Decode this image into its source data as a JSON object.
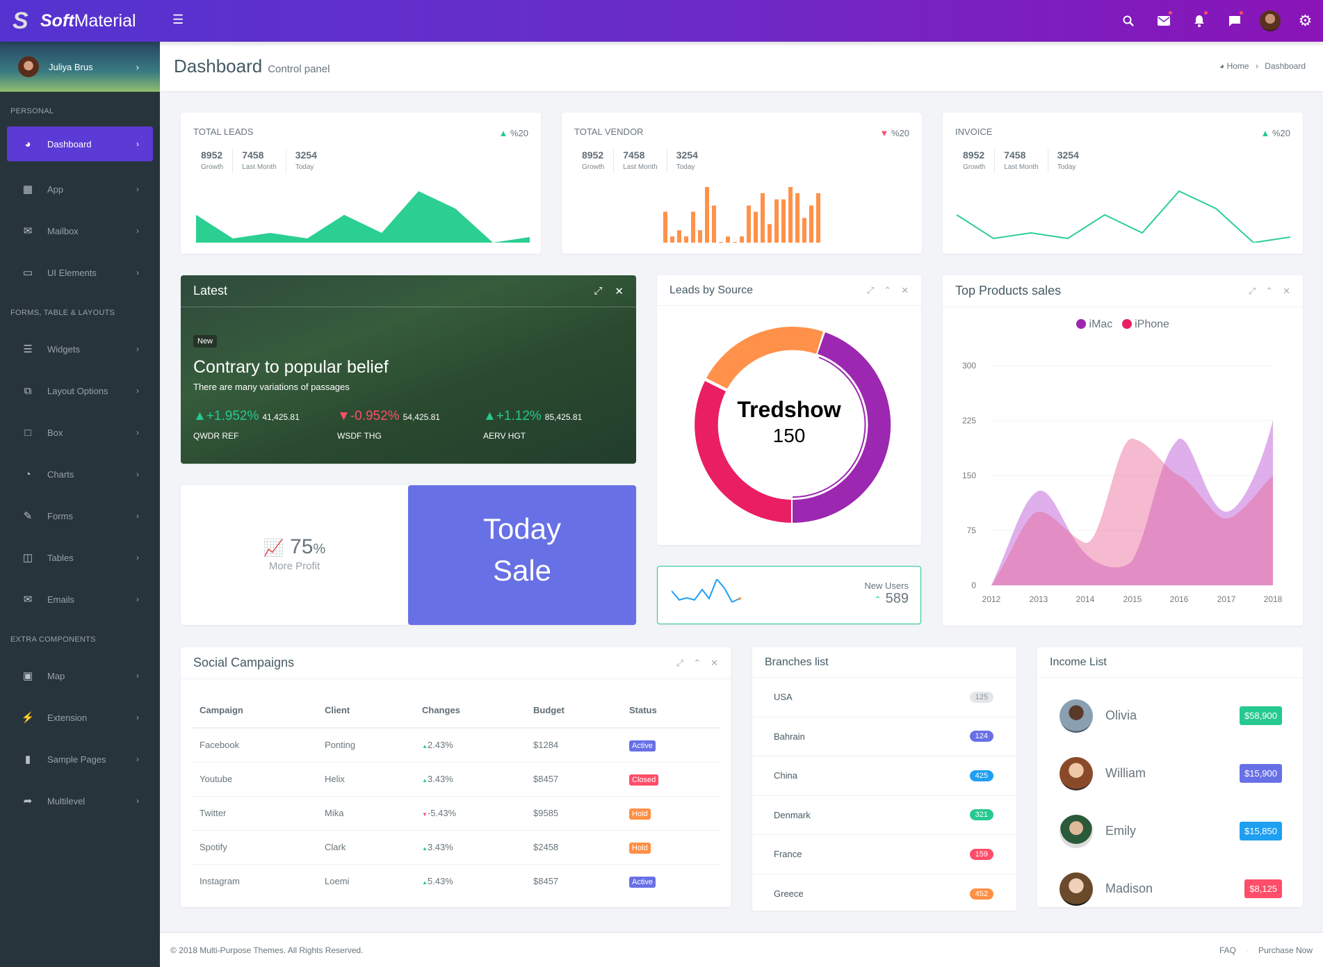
{
  "header": {
    "brand_bold": "Soft",
    "brand_rest": "Material",
    "icons": [
      "search-icon",
      "mail-icon",
      "bell-icon",
      "chat-icon",
      "avatar",
      "gear-icon"
    ]
  },
  "sidebar": {
    "user_name": "Juliya Brus",
    "sections": [
      {
        "title": "PERSONAL",
        "items": [
          {
            "label": "Dashboard",
            "icon": "dashboard-icon",
            "active": true
          },
          {
            "label": "App",
            "icon": "grid-icon"
          },
          {
            "label": "Mailbox",
            "icon": "envelope-icon"
          },
          {
            "label": "UI Elements",
            "icon": "laptop-icon"
          }
        ]
      },
      {
        "title": "FORMS, TABLE & LAYOUTS",
        "items": [
          {
            "label": "Widgets",
            "icon": "bars-icon"
          },
          {
            "label": "Layout Options",
            "icon": "copy-icon"
          },
          {
            "label": "Box",
            "icon": "square-icon"
          },
          {
            "label": "Charts",
            "icon": "pie-chart-icon"
          },
          {
            "label": "Forms",
            "icon": "edit-icon"
          },
          {
            "label": "Tables",
            "icon": "table-icon"
          },
          {
            "label": "Emails",
            "icon": "envelope-open-icon"
          }
        ]
      },
      {
        "title": "EXTRA COMPONENTS",
        "items": [
          {
            "label": "Map",
            "icon": "map-icon"
          },
          {
            "label": "Extension",
            "icon": "plug-icon"
          },
          {
            "label": "Sample Pages",
            "icon": "file-icon"
          },
          {
            "label": "Multilevel",
            "icon": "share-icon"
          }
        ]
      }
    ]
  },
  "page": {
    "title": "Dashboard",
    "subtitle": "Control panel",
    "breadcrumb": [
      "Home",
      "Dashboard"
    ]
  },
  "stats": [
    {
      "title": "TOTAL LEADS",
      "trend": "up",
      "pct": "%20",
      "values": [
        {
          "v": "8952",
          "l": "Growth"
        },
        {
          "v": "7458",
          "l": "Last Month"
        },
        {
          "v": "3254",
          "l": "Today"
        }
      ]
    },
    {
      "title": "TOTAL VENDOR",
      "trend": "down",
      "pct": "%20",
      "values": [
        {
          "v": "8952",
          "l": "Growth"
        },
        {
          "v": "7458",
          "l": "Last Month"
        },
        {
          "v": "3254",
          "l": "Today"
        }
      ]
    },
    {
      "title": "INVOICE",
      "trend": "up",
      "pct": "%20",
      "values": [
        {
          "v": "8952",
          "l": "Growth"
        },
        {
          "v": "7458",
          "l": "Last Month"
        },
        {
          "v": "3254",
          "l": "Today"
        }
      ]
    }
  ],
  "latest": {
    "title": "Latest",
    "badge": "New",
    "headline": "Contrary to popular belief",
    "sub": "There are many variations of passages",
    "stocks": [
      {
        "pct": "+1.952%",
        "amt": "41,425.81",
        "name": "QWDR REF",
        "trend": "up"
      },
      {
        "pct": "-0.952%",
        "amt": "54,425.81",
        "name": "WSDF THG",
        "trend": "down"
      },
      {
        "pct": "+1.12%",
        "amt": "85,425.81",
        "name": "AERV HGT",
        "trend": "up"
      }
    ]
  },
  "profit": {
    "value": "75",
    "unit": "%",
    "label": "More Profit"
  },
  "today_sale": {
    "line1": "Today",
    "line2": "Sale"
  },
  "leads_by_source": {
    "title": "Leads by Source",
    "center_title": "Tredshow",
    "center_value": "150"
  },
  "new_users": {
    "label": "New Users",
    "value": "589"
  },
  "top_products": {
    "title": "Top Products sales",
    "legend": [
      "iMac",
      "iPhone"
    ]
  },
  "social": {
    "title": "Social Campaigns",
    "columns": [
      "Campaign",
      "Client",
      "Changes",
      "Budget",
      "Status"
    ],
    "rows": [
      {
        "campaign": "Facebook",
        "client": "Ponting",
        "change": "2.43%",
        "trend": "up",
        "budget": "$1284",
        "status": "Active",
        "color": "#6870e6"
      },
      {
        "campaign": "Youtube",
        "client": "Helix",
        "change": "3.43%",
        "trend": "up",
        "budget": "$8457",
        "status": "Closed",
        "color": "#ff4d6a"
      },
      {
        "campaign": "Twitter",
        "client": "Mika",
        "change": "-5.43%",
        "trend": "down",
        "budget": "$9585",
        "status": "Hold",
        "color": "#ff8f45"
      },
      {
        "campaign": "Spotify",
        "client": "Clark",
        "change": "3.43%",
        "trend": "up",
        "budget": "$2458",
        "status": "Hold",
        "color": "#ff8f45"
      },
      {
        "campaign": "Instagram",
        "client": "Loemi",
        "change": "5.43%",
        "trend": "up",
        "budget": "$8457",
        "status": "Active",
        "color": "#6870e6"
      }
    ]
  },
  "branches": {
    "title": "Branches list",
    "items": [
      {
        "name": "USA",
        "count": "125",
        "color": "#e4e7ea",
        "text": "#8a949a"
      },
      {
        "name": "Bahrain",
        "count": "124",
        "color": "#6870e6",
        "text": "#fff"
      },
      {
        "name": "China",
        "count": "425",
        "color": "#1e9ff2",
        "text": "#fff"
      },
      {
        "name": "Denmark",
        "count": "321",
        "color": "#26c98f",
        "text": "#fff"
      },
      {
        "name": "France",
        "count": "159",
        "color": "#ff4d6a",
        "text": "#fff"
      },
      {
        "name": "Greece",
        "count": "452",
        "color": "#ff8f45",
        "text": "#fff"
      }
    ]
  },
  "income": {
    "title": "Income List",
    "items": [
      {
        "name": "Olivia",
        "amount": "$58,900",
        "color": "#26c98f"
      },
      {
        "name": "William",
        "amount": "$15,900",
        "color": "#6870e6"
      },
      {
        "name": "Emily",
        "amount": "$15,850",
        "color": "#1e9ff2"
      },
      {
        "name": "Madison",
        "amount": "$8,125",
        "color": "#ff4d6a"
      }
    ]
  },
  "footer": {
    "copyright": "© 2018 Multi-Purpose Themes. All Rights Reserved.",
    "links": [
      "FAQ",
      "Purchase Now"
    ]
  },
  "chart_data": [
    {
      "type": "area",
      "title": "TOTAL LEADS sparkline",
      "values": [
        5,
        1,
        2,
        1,
        5,
        2,
        9,
        6,
        0,
        1
      ],
      "color": "#2bcf92"
    },
    {
      "type": "bar",
      "title": "TOTAL VENDOR sparkline",
      "values": [
        5,
        1,
        2,
        1,
        5,
        2,
        9,
        6,
        0,
        1,
        0,
        1,
        6,
        5,
        8,
        3,
        7,
        7,
        9,
        8,
        4,
        6,
        8
      ],
      "color": "#ff914a"
    },
    {
      "type": "line",
      "title": "INVOICE sparkline",
      "values": [
        5,
        1,
        2,
        1,
        5,
        2,
        9,
        6,
        0,
        1
      ],
      "color": "#2bcf92"
    },
    {
      "type": "pie",
      "title": "Leads by Source",
      "donut": true,
      "center": "Tredshow 150",
      "slices": [
        {
          "label": "Purple",
          "value": 50,
          "color": "#9c27b0"
        },
        {
          "label": "Pink",
          "value": 30,
          "color": "#e91e63"
        },
        {
          "label": "Orange",
          "value": 20,
          "color": "#ff914a"
        }
      ]
    },
    {
      "type": "line",
      "title": "New Users sparkline",
      "values": [
        4,
        2,
        2.5,
        2,
        4,
        2.5,
        6,
        4,
        1,
        1.5
      ],
      "color": "#1e9ff2"
    },
    {
      "type": "area",
      "title": "Top Products sales",
      "categories": [
        "2012",
        "2013",
        "2014",
        "2015",
        "2016",
        "2017",
        "2018"
      ],
      "series": [
        {
          "name": "iMac",
          "values": [
            0,
            130,
            30,
            30,
            200,
            105,
            250
          ],
          "color": "#9c27b0"
        },
        {
          "name": "iPhone",
          "values": [
            0,
            100,
            60,
            200,
            150,
            90,
            150
          ],
          "color": "#e91e63"
        }
      ],
      "ylim": [
        0,
        300
      ],
      "yticks": [
        0,
        75,
        150,
        225,
        300
      ],
      "legend": "top",
      "grid": true
    }
  ]
}
